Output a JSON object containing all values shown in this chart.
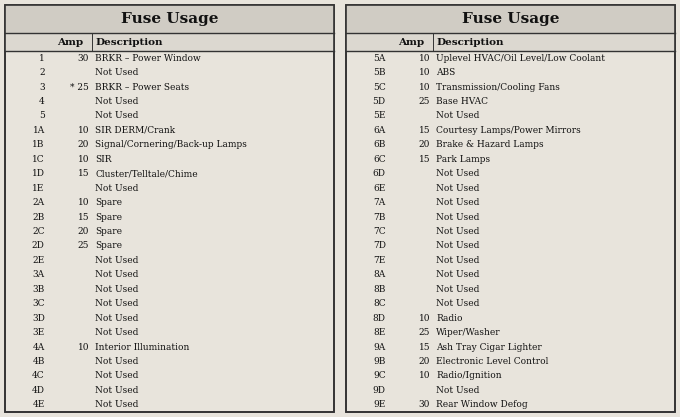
{
  "title": "Fuse Usage",
  "left_table": {
    "headers": [
      "",
      "Amp",
      "Description"
    ],
    "rows": [
      [
        "1",
        "30",
        "BRKR – Power Window"
      ],
      [
        "2",
        "",
        "Not Used"
      ],
      [
        "3",
        "* 25",
        "BRKR – Power Seats"
      ],
      [
        "4",
        "",
        "Not Used"
      ],
      [
        "5",
        "",
        "Not Used"
      ],
      [
        "1A",
        "10",
        "SIR DERM/Crank"
      ],
      [
        "1B",
        "20",
        "Signal/Cornering/Back-up Lamps"
      ],
      [
        "1C",
        "10",
        "SIR"
      ],
      [
        "1D",
        "15",
        "Cluster/Telltale/Chime"
      ],
      [
        "1E",
        "",
        "Not Used"
      ],
      [
        "2A",
        "10",
        "Spare"
      ],
      [
        "2B",
        "15",
        "Spare"
      ],
      [
        "2C",
        "20",
        "Spare"
      ],
      [
        "2D",
        "25",
        "Spare"
      ],
      [
        "2E",
        "",
        "Not Used"
      ],
      [
        "3A",
        "",
        "Not Used"
      ],
      [
        "3B",
        "",
        "Not Used"
      ],
      [
        "3C",
        "",
        "Not Used"
      ],
      [
        "3D",
        "",
        "Not Used"
      ],
      [
        "3E",
        "",
        "Not Used"
      ],
      [
        "4A",
        "10",
        "Interior Illumination"
      ],
      [
        "4B",
        "",
        "Not Used"
      ],
      [
        "4C",
        "",
        "Not Used"
      ],
      [
        "4D",
        "",
        "Not Used"
      ],
      [
        "4E",
        "",
        "Not Used"
      ]
    ]
  },
  "right_table": {
    "headers": [
      "",
      "Amp",
      "Description"
    ],
    "rows": [
      [
        "5A",
        "10",
        "Uplevel HVAC/Oil Level/Low Coolant"
      ],
      [
        "5B",
        "10",
        "ABS"
      ],
      [
        "5C",
        "10",
        "Transmission/Cooling Fans"
      ],
      [
        "5D",
        "25",
        "Base HVAC"
      ],
      [
        "5E",
        "",
        "Not Used"
      ],
      [
        "6A",
        "15",
        "Courtesy Lamps/Power Mirrors"
      ],
      [
        "6B",
        "20",
        "Brake & Hazard Lamps"
      ],
      [
        "6C",
        "15",
        "Park Lamps"
      ],
      [
        "6D",
        "",
        "Not Used"
      ],
      [
        "6E",
        "",
        "Not Used"
      ],
      [
        "7A",
        "",
        "Not Used"
      ],
      [
        "7B",
        "",
        "Not Used"
      ],
      [
        "7C",
        "",
        "Not Used"
      ],
      [
        "7D",
        "",
        "Not Used"
      ],
      [
        "7E",
        "",
        "Not Used"
      ],
      [
        "8A",
        "",
        "Not Used"
      ],
      [
        "8B",
        "",
        "Not Used"
      ],
      [
        "8C",
        "",
        "Not Used"
      ],
      [
        "8D",
        "10",
        "Radio"
      ],
      [
        "8E",
        "25",
        "Wiper/Washer"
      ],
      [
        "9A",
        "15",
        "Ash Tray Cigar Lighter"
      ],
      [
        "9B",
        "20",
        "Electronic Level Control"
      ],
      [
        "9C",
        "10",
        "Radio/Ignition"
      ],
      [
        "9D",
        "",
        "Not Used"
      ],
      [
        "9E",
        "30",
        "Rear Window Defog"
      ]
    ]
  },
  "bg_color": "#e8e4dc",
  "title_bg": "#d0ccc4",
  "header_bg": "#dcd8d0",
  "border_color": "#333333",
  "text_color": "#111111",
  "title_fontsize": 11,
  "header_fontsize": 7.5,
  "row_fontsize": 6.5
}
